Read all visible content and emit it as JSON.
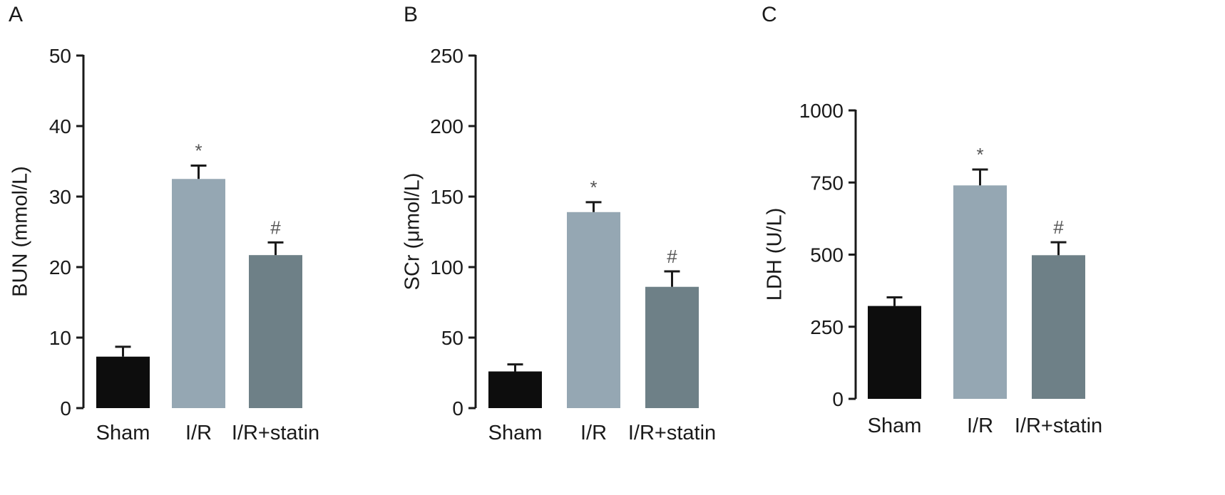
{
  "chart_data": [
    {
      "type": "bar",
      "panel": "A",
      "ylabel": "BUN (mmol/L)",
      "ylim": [
        0,
        50
      ],
      "yticks": [
        0,
        10,
        20,
        30,
        40,
        50
      ],
      "categories": [
        "Sham",
        "I/R",
        "I/R+statin"
      ],
      "values": [
        7.3,
        32.5,
        21.7
      ],
      "errors": [
        1.4,
        1.9,
        1.8
      ],
      "annotations": [
        "",
        "*",
        "#"
      ],
      "colors": [
        "#0d0d0d",
        "#95a7b3",
        "#6e8087"
      ]
    },
    {
      "type": "bar",
      "panel": "B",
      "ylabel": "SCr (μmol/L)",
      "ylim": [
        0,
        250
      ],
      "yticks": [
        0,
        50,
        100,
        150,
        200,
        250
      ],
      "categories": [
        "Sham",
        "I/R",
        "I/R+statin"
      ],
      "values": [
        26,
        139,
        86
      ],
      "errors": [
        5,
        7,
        11
      ],
      "annotations": [
        "",
        "*",
        "#"
      ],
      "colors": [
        "#0d0d0d",
        "#95a7b3",
        "#6e8087"
      ]
    },
    {
      "type": "bar",
      "panel": "C",
      "ylabel": "LDH (U/L)",
      "ylim": [
        0,
        1000
      ],
      "yticks": [
        0,
        250,
        500,
        750,
        1000
      ],
      "categories": [
        "Sham",
        "I/R",
        "I/R+statin"
      ],
      "values": [
        322,
        740,
        498
      ],
      "errors": [
        30,
        55,
        45
      ],
      "annotations": [
        "",
        "*",
        "#"
      ],
      "colors": [
        "#0d0d0d",
        "#95a7b3",
        "#6e8087"
      ]
    }
  ]
}
